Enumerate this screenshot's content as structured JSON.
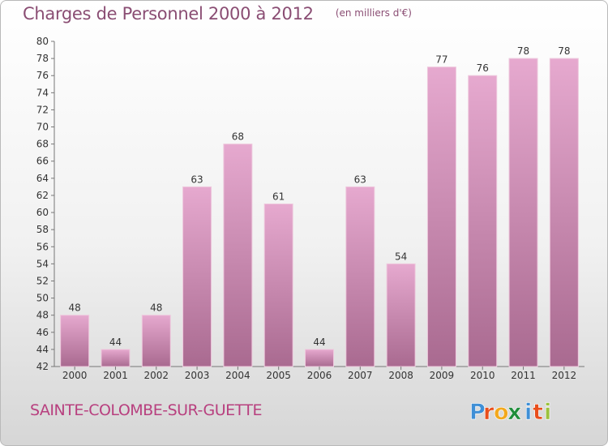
{
  "chart_data": {
    "type": "bar",
    "title": "Charges de Personnel 2000 à 2012",
    "subtitle": "(en milliers d'€)",
    "categories": [
      "2000",
      "2001",
      "2002",
      "2003",
      "2004",
      "2005",
      "2006",
      "2007",
      "2008",
      "2009",
      "2010",
      "2011",
      "2012"
    ],
    "values": [
      48,
      44,
      48,
      63,
      68,
      61,
      44,
      63,
      54,
      77,
      76,
      78,
      78
    ],
    "value_labels": [
      "48",
      "44",
      "48",
      "63",
      "68",
      "61",
      "44",
      "63",
      "54",
      "77",
      "76",
      "78",
      "78"
    ],
    "ylim": [
      42,
      80
    ],
    "yticks": [
      "42",
      "44",
      "46",
      "48",
      "50",
      "52",
      "54",
      "56",
      "58",
      "60",
      "62",
      "64",
      "66",
      "68",
      "70",
      "72",
      "74",
      "76",
      "78",
      "80"
    ],
    "grid": false,
    "legend": "none",
    "bar_color_top": "#e6a9cf",
    "bar_color_bottom": "#a96a90"
  },
  "location": "SAINTE-COLOMBE-SUR-GUETTE",
  "brand": {
    "letters": [
      "P",
      "r",
      "o",
      "x",
      "i",
      "t",
      "i"
    ],
    "colors": [
      "#3f8fd6",
      "#e94e1b",
      "#f2a81d",
      "#1f8d3a",
      "#3f8fd6",
      "#e94e1b",
      "#9bc13c"
    ]
  }
}
